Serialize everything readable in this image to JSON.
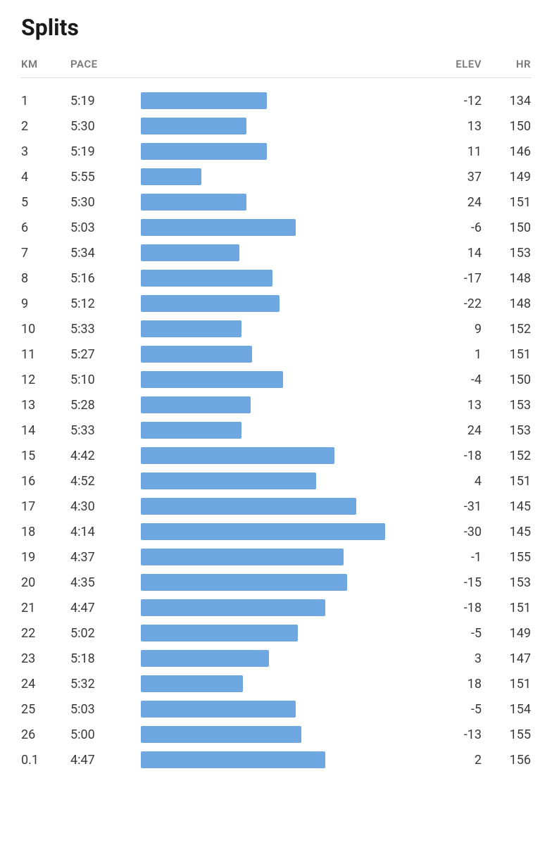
{
  "title": "Splits",
  "columns": {
    "km": "KM",
    "pace": "PACE",
    "elev": "ELEV",
    "hr": "HR"
  },
  "bar_color": "#6fa8e0",
  "text_color": "#3a3a3a",
  "header_color": "#7a7a7a",
  "background_color": "#ffffff",
  "divider_color": "#dcdcdc",
  "bar_max_width_pct": 100,
  "pace_range": {
    "fastest_sec": 254,
    "slowest_sec": 360,
    "min_bar_pct": 18,
    "max_bar_pct": 86
  },
  "rows": [
    {
      "km": "1",
      "pace": "5:19",
      "pace_sec": 319,
      "elev": "-12",
      "hr": "134"
    },
    {
      "km": "2",
      "pace": "5:30",
      "pace_sec": 330,
      "elev": "13",
      "hr": "150"
    },
    {
      "km": "3",
      "pace": "5:19",
      "pace_sec": 319,
      "elev": "11",
      "hr": "146"
    },
    {
      "km": "4",
      "pace": "5:55",
      "pace_sec": 355,
      "elev": "37",
      "hr": "149"
    },
    {
      "km": "5",
      "pace": "5:30",
      "pace_sec": 330,
      "elev": "24",
      "hr": "151"
    },
    {
      "km": "6",
      "pace": "5:03",
      "pace_sec": 303,
      "elev": "-6",
      "hr": "150"
    },
    {
      "km": "7",
      "pace": "5:34",
      "pace_sec": 334,
      "elev": "14",
      "hr": "153"
    },
    {
      "km": "8",
      "pace": "5:16",
      "pace_sec": 316,
      "elev": "-17",
      "hr": "148"
    },
    {
      "km": "9",
      "pace": "5:12",
      "pace_sec": 312,
      "elev": "-22",
      "hr": "148"
    },
    {
      "km": "10",
      "pace": "5:33",
      "pace_sec": 333,
      "elev": "9",
      "hr": "152"
    },
    {
      "km": "11",
      "pace": "5:27",
      "pace_sec": 327,
      "elev": "1",
      "hr": "151"
    },
    {
      "km": "12",
      "pace": "5:10",
      "pace_sec": 310,
      "elev": "-4",
      "hr": "150"
    },
    {
      "km": "13",
      "pace": "5:28",
      "pace_sec": 328,
      "elev": "13",
      "hr": "153"
    },
    {
      "km": "14",
      "pace": "5:33",
      "pace_sec": 333,
      "elev": "24",
      "hr": "153"
    },
    {
      "km": "15",
      "pace": "4:42",
      "pace_sec": 282,
      "elev": "-18",
      "hr": "152"
    },
    {
      "km": "16",
      "pace": "4:52",
      "pace_sec": 292,
      "elev": "4",
      "hr": "151"
    },
    {
      "km": "17",
      "pace": "4:30",
      "pace_sec": 270,
      "elev": "-31",
      "hr": "145"
    },
    {
      "km": "18",
      "pace": "4:14",
      "pace_sec": 254,
      "elev": "-30",
      "hr": "145"
    },
    {
      "km": "19",
      "pace": "4:37",
      "pace_sec": 277,
      "elev": "-1",
      "hr": "155"
    },
    {
      "km": "20",
      "pace": "4:35",
      "pace_sec": 275,
      "elev": "-15",
      "hr": "153"
    },
    {
      "km": "21",
      "pace": "4:47",
      "pace_sec": 287,
      "elev": "-18",
      "hr": "151"
    },
    {
      "km": "22",
      "pace": "5:02",
      "pace_sec": 302,
      "elev": "-5",
      "hr": "149"
    },
    {
      "km": "23",
      "pace": "5:18",
      "pace_sec": 318,
      "elev": "3",
      "hr": "147"
    },
    {
      "km": "24",
      "pace": "5:32",
      "pace_sec": 332,
      "elev": "18",
      "hr": "151"
    },
    {
      "km": "25",
      "pace": "5:03",
      "pace_sec": 303,
      "elev": "-5",
      "hr": "154"
    },
    {
      "km": "26",
      "pace": "5:00",
      "pace_sec": 300,
      "elev": "-13",
      "hr": "155"
    },
    {
      "km": "0.1",
      "pace": "4:47",
      "pace_sec": 287,
      "elev": "2",
      "hr": "156"
    }
  ]
}
